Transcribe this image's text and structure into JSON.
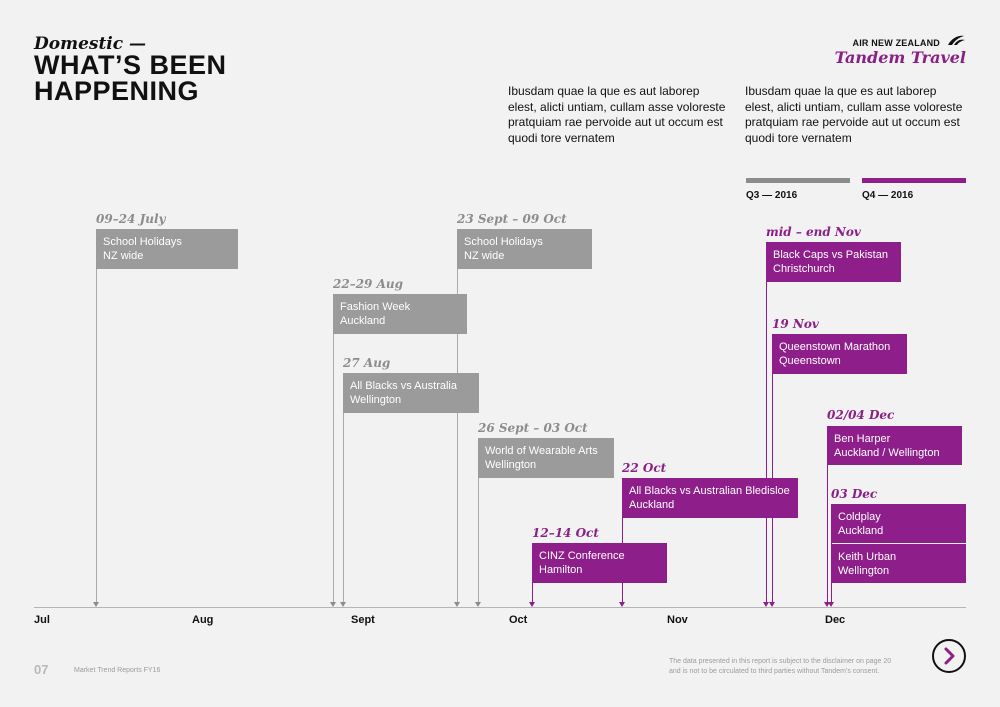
{
  "header": {
    "eyebrow": "Domestic —",
    "title_line1": "WHAT’S BEEN",
    "title_line2": "HAPPENING"
  },
  "brand": {
    "airline": "AIR NEW ZEALAND",
    "name": "Tandem Travel",
    "icon": "fern-koru-icon"
  },
  "intro": [
    "Ibusdam quae la que es aut laborep elest, alicti untiam, cullam asse voloreste pratquiam rae pervoide aut ut occum est quodi tore vernatem",
    "Ibusdam quae la que es aut laborep elest, alicti untiam, cullam asse voloreste pratquiam rae pervoide aut ut occum est quodi tore vernatem"
  ],
  "legend": [
    {
      "label": "Q3 — 2016",
      "color": "#8c8c8c"
    },
    {
      "label": "Q4 — 2016",
      "color": "#8e1f8a"
    }
  ],
  "months": [
    "Jul",
    "Aug",
    "Sept",
    "Oct",
    "Nov",
    "Dec"
  ],
  "events": [
    {
      "date": "09–24 July",
      "line1": "School Holidays",
      "line2": "NZ wide",
      "quarter": "Q3"
    },
    {
      "date": "22–29 Aug",
      "line1": "Fashion Week",
      "line2": "Auckland",
      "quarter": "Q3"
    },
    {
      "date": "27 Aug",
      "line1": "All Blacks vs Australia",
      "line2": "Wellington",
      "quarter": "Q3"
    },
    {
      "date": "23 Sept – 09 Oct",
      "line1": "School Holidays",
      "line2": "NZ wide",
      "quarter": "Q3"
    },
    {
      "date": "26 Sept – 03 Oct",
      "line1": "World of Wearable Arts",
      "line2": "Wellington",
      "quarter": "Q3"
    },
    {
      "date": "12–14 Oct",
      "line1": "CINZ Conference",
      "line2": "Hamilton",
      "quarter": "Q4"
    },
    {
      "date": "22 Oct",
      "line1": "All Blacks vs Australian Bledisloe",
      "line2": "Auckland",
      "quarter": "Q4"
    },
    {
      "date": "mid – end Nov",
      "line1": "Black Caps vs Pakistan",
      "line2": "Christchurch",
      "quarter": "Q4"
    },
    {
      "date": "19 Nov",
      "line1": "Queenstown Marathon",
      "line2": "Queenstown",
      "quarter": "Q4"
    },
    {
      "date": "02/04 Dec",
      "line1": "Ben Harper",
      "line2": "Auckland / Wellington",
      "quarter": "Q4"
    },
    {
      "date": "03 Dec",
      "line1": "Coldplay",
      "line2": "Auckland",
      "quarter": "Q4"
    },
    {
      "date": "",
      "line1": "Keith Urban",
      "line2": "Wellington",
      "quarter": "Q4"
    }
  ],
  "footer": {
    "page": "07",
    "report": "Market Trend Reports FY16",
    "disclaimer_line1": "The data presented in this report is subject to the disclaimer on page 20",
    "disclaimer_line2": "and is not to be circulated to third parties without Tandem’s consent.",
    "next_icon": "chevron-right-icon"
  }
}
